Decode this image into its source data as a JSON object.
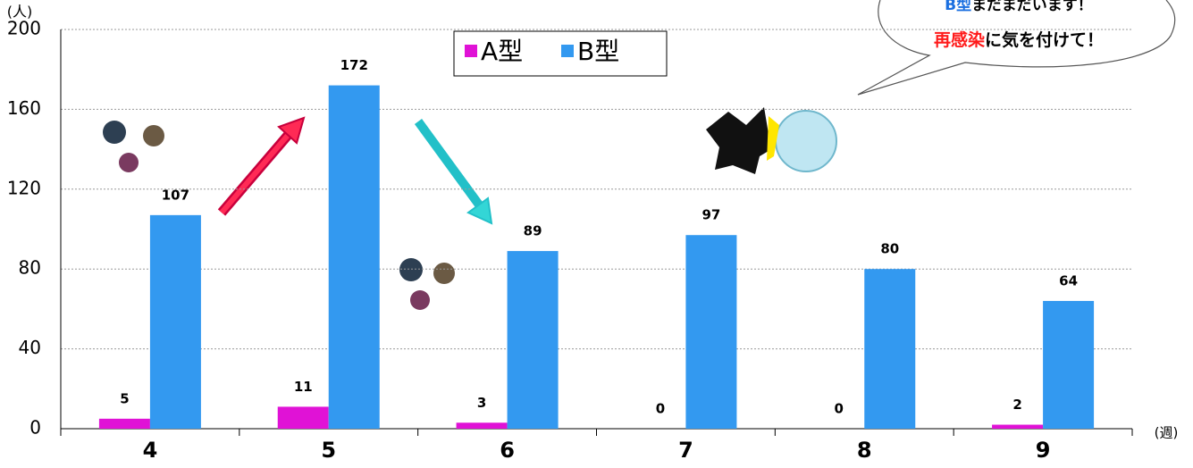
{
  "chart_data": {
    "type": "bar",
    "y_label": "(人)",
    "x_label": "(週)",
    "categories": [
      "4",
      "5",
      "6",
      "7",
      "8",
      "9"
    ],
    "series": [
      {
        "name": "A型",
        "color": "#e012d6",
        "values": [
          5,
          11,
          3,
          0,
          0,
          2
        ]
      },
      {
        "name": "B型",
        "color": "#3399f0",
        "values": [
          107,
          172,
          89,
          97,
          80,
          64
        ]
      }
    ],
    "ylim": [
      0,
      200
    ],
    "yticks": [
      0,
      40,
      80,
      120,
      160,
      200
    ],
    "grid": true,
    "annotation": [
      [
        "B型",
        "まだまだいます！"
      ],
      [
        "再感染",
        "に気を付けて！"
      ]
    ]
  }
}
